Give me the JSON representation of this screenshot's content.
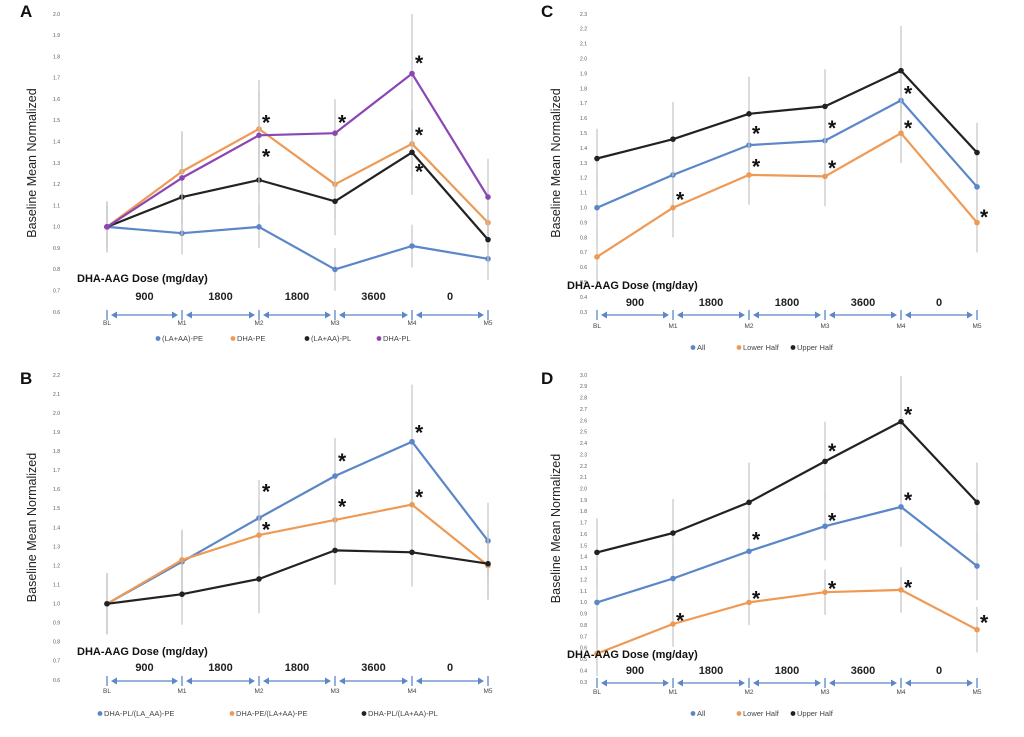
{
  "figure": {
    "dose_title": "DHA-AAG Dose (mg/day)",
    "ylabel": "Baseline Mean Normalized",
    "dose_labels": [
      "900",
      "1800",
      "1800",
      "3600",
      "0"
    ],
    "timepoints": [
      "BL",
      "M1",
      "M2",
      "M3",
      "M4",
      "M5"
    ]
  },
  "chart_data": [
    {
      "panel": "A",
      "type": "line",
      "title": "A",
      "ylabel": "Baseline Mean Normalized",
      "xlabel": "DHA-AAG Dose (mg/day)",
      "ylim": [
        0.6,
        2.0
      ],
      "yticks": [
        0.6,
        0.7,
        0.8,
        0.9,
        1.0,
        1.1,
        1.2,
        1.3,
        1.4,
        1.5,
        1.6,
        1.7,
        1.8,
        1.9,
        2.0
      ],
      "categories": [
        "BL",
        "M1",
        "M2",
        "M3",
        "M4",
        "M5"
      ],
      "series": [
        {
          "name": "(LA+AA)-PE",
          "color": "#5b87c8",
          "values": [
            1.0,
            0.97,
            1.0,
            0.8,
            0.91,
            0.85
          ],
          "errors": [
            0.1,
            0.1,
            0.1,
            0.1,
            0.1,
            0.1
          ]
        },
        {
          "name": "DHA-PE",
          "color": "#ee9a55",
          "values": [
            1.0,
            1.26,
            1.46,
            1.2,
            1.39,
            1.02
          ],
          "errors": [
            0.1,
            0.18,
            0.18,
            0.16,
            0.16,
            0.12
          ]
        },
        {
          "name": "(LA+AA)-PL",
          "color": "#222222",
          "values": [
            1.0,
            1.14,
            1.22,
            1.12,
            1.35,
            0.94
          ],
          "errors": [
            0.12,
            0.18,
            0.18,
            0.16,
            0.2,
            0.12
          ]
        },
        {
          "name": "DHA-PL",
          "color": "#8a46b4",
          "values": [
            1.0,
            1.23,
            1.43,
            1.44,
            1.72,
            1.14
          ],
          "errors": [
            0.12,
            0.22,
            0.26,
            0.16,
            0.28,
            0.18
          ]
        }
      ],
      "asterisks": [
        {
          "at": "M2",
          "y": 1.5
        },
        {
          "at": "M2",
          "y": 1.34
        },
        {
          "at": "M3",
          "y": 1.5
        },
        {
          "at": "M4",
          "y": 1.78
        },
        {
          "at": "M4",
          "y": 1.44
        },
        {
          "at": "M4",
          "y": 1.27
        }
      ]
    },
    {
      "panel": "B",
      "type": "line",
      "title": "B",
      "ylabel": "Baseline Mean Normalized",
      "xlabel": "DHA-AAG Dose (mg/day)",
      "ylim": [
        0.6,
        2.2
      ],
      "yticks": [
        0.6,
        0.7,
        0.8,
        0.9,
        1.0,
        1.1,
        1.2,
        1.3,
        1.4,
        1.5,
        1.6,
        1.7,
        1.8,
        1.9,
        2.0,
        2.1,
        2.2
      ],
      "categories": [
        "BL",
        "M1",
        "M2",
        "M3",
        "M4",
        "M5"
      ],
      "series": [
        {
          "name": "DHA-PL/(LA_AA)-PE",
          "color": "#5b87c8",
          "values": [
            1.0,
            1.22,
            1.45,
            1.67,
            1.85,
            1.33
          ],
          "errors": [
            0.16,
            0.16,
            0.2,
            0.2,
            0.3,
            0.2
          ]
        },
        {
          "name": "DHA-PE/(LA+AA)-PE",
          "color": "#ee9a55",
          "values": [
            1.0,
            1.23,
            1.36,
            1.44,
            1.52,
            1.2
          ],
          "errors": [
            0.16,
            0.16,
            0.18,
            0.18,
            0.22,
            0.18
          ]
        },
        {
          "name": "DHA-PL/(LA+AA)-PL",
          "color": "#222222",
          "values": [
            1.0,
            1.05,
            1.13,
            1.28,
            1.27,
            1.21
          ],
          "errors": [
            0.16,
            0.16,
            0.18,
            0.18,
            0.18,
            0.18
          ]
        }
      ],
      "asterisks": [
        {
          "at": "M2",
          "y": 1.6
        },
        {
          "at": "M2",
          "y": 1.4
        },
        {
          "at": "M3",
          "y": 1.76
        },
        {
          "at": "M3",
          "y": 1.52
        },
        {
          "at": "M4",
          "y": 1.91
        },
        {
          "at": "M4",
          "y": 1.57
        }
      ]
    },
    {
      "panel": "C",
      "type": "line",
      "title": "C",
      "ylabel": "Baseline Mean Normalized",
      "xlabel": "DHA-AAG Dose (mg/day)",
      "ylim": [
        0.3,
        2.3
      ],
      "yticks": [
        0.3,
        0.4,
        0.5,
        0.6,
        0.7,
        0.8,
        0.9,
        1.0,
        1.1,
        1.2,
        1.3,
        1.4,
        1.5,
        1.6,
        1.7,
        1.8,
        1.9,
        2.0,
        2.1,
        2.2,
        2.3
      ],
      "categories": [
        "BL",
        "M1",
        "M2",
        "M3",
        "M4",
        "M5"
      ],
      "series": [
        {
          "name": "All",
          "color": "#5b87c8",
          "values": [
            1.0,
            1.22,
            1.42,
            1.45,
            1.72,
            1.14
          ],
          "errors": [
            0.25,
            0.25,
            0.25,
            0.22,
            0.25,
            0.2
          ]
        },
        {
          "name": "Lower Half",
          "color": "#ee9a55",
          "values": [
            0.67,
            1.0,
            1.22,
            1.21,
            1.5,
            0.9
          ],
          "errors": [
            0.2,
            0.2,
            0.2,
            0.2,
            0.2,
            0.2
          ]
        },
        {
          "name": "Upper Half",
          "color": "#222222",
          "values": [
            1.33,
            1.46,
            1.63,
            1.68,
            1.92,
            1.37
          ],
          "errors": [
            0.2,
            0.25,
            0.25,
            0.25,
            0.3,
            0.2
          ]
        }
      ],
      "asterisks": [
        {
          "at": "M1",
          "y": 1.07
        },
        {
          "at": "M2",
          "y": 1.51
        },
        {
          "at": "M2",
          "y": 1.29
        },
        {
          "at": "M3",
          "y": 1.55
        },
        {
          "at": "M3",
          "y": 1.28
        },
        {
          "at": "M4",
          "y": 1.78
        },
        {
          "at": "M4",
          "y": 1.55
        },
        {
          "at": "M5",
          "y": 0.95
        }
      ]
    },
    {
      "panel": "D",
      "type": "line",
      "title": "D",
      "ylabel": "Baseline Mean Normalized",
      "xlabel": "DHA-AAG Dose (mg/day)",
      "ylim": [
        0.3,
        3.0
      ],
      "yticks": [
        0.3,
        0.4,
        0.5,
        0.6,
        0.7,
        0.8,
        0.9,
        1.0,
        1.1,
        1.2,
        1.3,
        1.4,
        1.5,
        1.6,
        1.7,
        1.8,
        1.9,
        2.0,
        2.1,
        2.2,
        2.3,
        2.4,
        2.5,
        2.6,
        2.7,
        2.8,
        2.9,
        3.0
      ],
      "categories": [
        "BL",
        "M1",
        "M2",
        "M3",
        "M4",
        "M5"
      ],
      "series": [
        {
          "name": "All",
          "color": "#5b87c8",
          "values": [
            1.0,
            1.21,
            1.45,
            1.67,
            1.84,
            1.32
          ],
          "errors": [
            0.3,
            0.3,
            0.3,
            0.3,
            0.35,
            0.3
          ]
        },
        {
          "name": "Lower Half",
          "color": "#ee9a55",
          "values": [
            0.55,
            0.81,
            1.0,
            1.09,
            1.11,
            0.76
          ],
          "errors": [
            0.2,
            0.2,
            0.2,
            0.2,
            0.2,
            0.2
          ]
        },
        {
          "name": "Upper Half",
          "color": "#222222",
          "values": [
            1.44,
            1.61,
            1.88,
            2.24,
            2.59,
            1.88
          ],
          "errors": [
            0.3,
            0.3,
            0.35,
            0.35,
            0.4,
            0.35
          ]
        }
      ],
      "asterisks": [
        {
          "at": "M1",
          "y": 0.86
        },
        {
          "at": "M2",
          "y": 1.57
        },
        {
          "at": "M2",
          "y": 1.05
        },
        {
          "at": "M3",
          "y": 2.35
        },
        {
          "at": "M3",
          "y": 1.74
        },
        {
          "at": "M3",
          "y": 1.14
        },
        {
          "at": "M4",
          "y": 2.67
        },
        {
          "at": "M4",
          "y": 1.92
        },
        {
          "at": "M4",
          "y": 1.15
        },
        {
          "at": "M5",
          "y": 0.84
        }
      ]
    }
  ]
}
